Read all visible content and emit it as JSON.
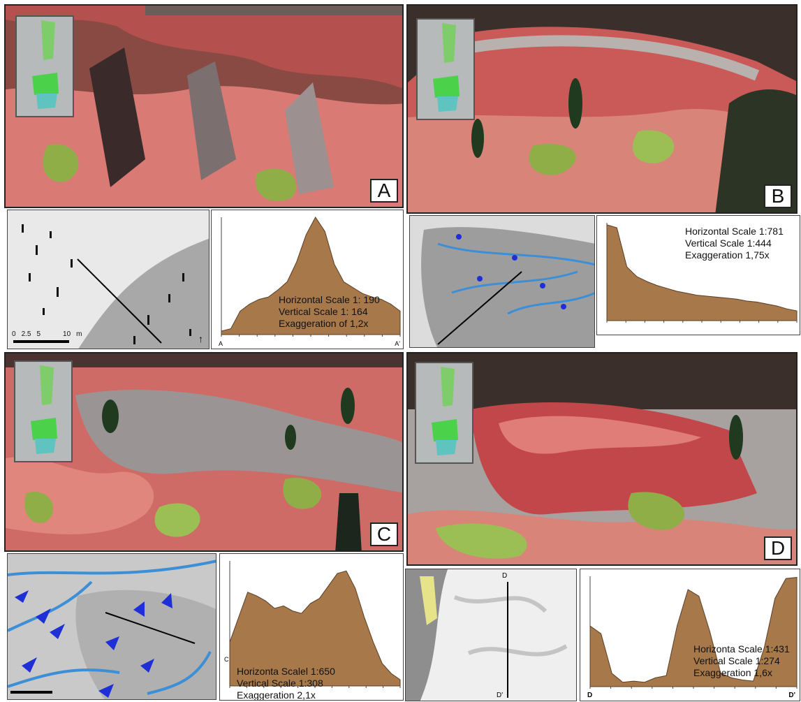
{
  "panels": {
    "a": {
      "letter": "A",
      "scale_text": [
        "Horizontal Scale 1: 190",
        "Vertical Scale 1: 164",
        "Exaggeration of 1,2x"
      ],
      "map_scale_labels": [
        "0",
        "2.5",
        "5",
        "10"
      ],
      "map_scale_unit": "m",
      "profile_start": "A",
      "profile_end": "A'"
    },
    "b": {
      "letter": "B",
      "scale_text": [
        "Horizontal Scale 1:781",
        "Vertical Scale 1:444",
        "Exaggeration 1,75x"
      ]
    },
    "c": {
      "letter": "C",
      "scale_text": [
        "Horizonta Scalel 1:650",
        "Vertical Scale 1:308",
        "Exaggeration 2,1x"
      ],
      "profile_start": "C"
    },
    "d": {
      "letter": "D",
      "scale_text": [
        "Horizonta Scale 1:431",
        "Vertical Scale 1:274",
        "Exaggeration 1,6x"
      ],
      "profile_start": "D",
      "profile_end": "D'",
      "map_top_label": "D",
      "map_bottom_label": "D'"
    }
  },
  "colors": {
    "terrain_red": "#c8494a",
    "terrain_pink": "#e0867c",
    "terrain_gray": "#9a9594",
    "vegetation_green": "#8fae48",
    "profile_fill": "#a6784a",
    "river_blue": "#3c8fd6",
    "arrow_blue": "#1e2fd8"
  },
  "profiles": {
    "a": [
      0.03,
      0.05,
      0.2,
      0.26,
      0.3,
      0.32,
      0.38,
      0.45,
      0.62,
      0.85,
      1.0,
      0.88,
      0.6,
      0.45,
      0.4,
      0.35,
      0.32,
      0.3,
      0.26,
      0.2
    ],
    "b": [
      0.98,
      0.95,
      0.55,
      0.45,
      0.4,
      0.36,
      0.33,
      0.3,
      0.28,
      0.26,
      0.25,
      0.24,
      0.23,
      0.22,
      0.2,
      0.19,
      0.17,
      0.15,
      0.12,
      0.1
    ],
    "c": [
      0.35,
      0.55,
      0.75,
      0.72,
      0.68,
      0.62,
      0.64,
      0.6,
      0.58,
      0.66,
      0.7,
      0.8,
      0.9,
      0.92,
      0.78,
      0.55,
      0.35,
      0.18,
      0.1,
      0.05
    ],
    "d": [
      0.55,
      0.48,
      0.12,
      0.04,
      0.05,
      0.04,
      0.08,
      0.1,
      0.55,
      0.88,
      0.82,
      0.5,
      0.12,
      0.08,
      0.06,
      0.05,
      0.35,
      0.8,
      0.98,
      0.99
    ]
  }
}
